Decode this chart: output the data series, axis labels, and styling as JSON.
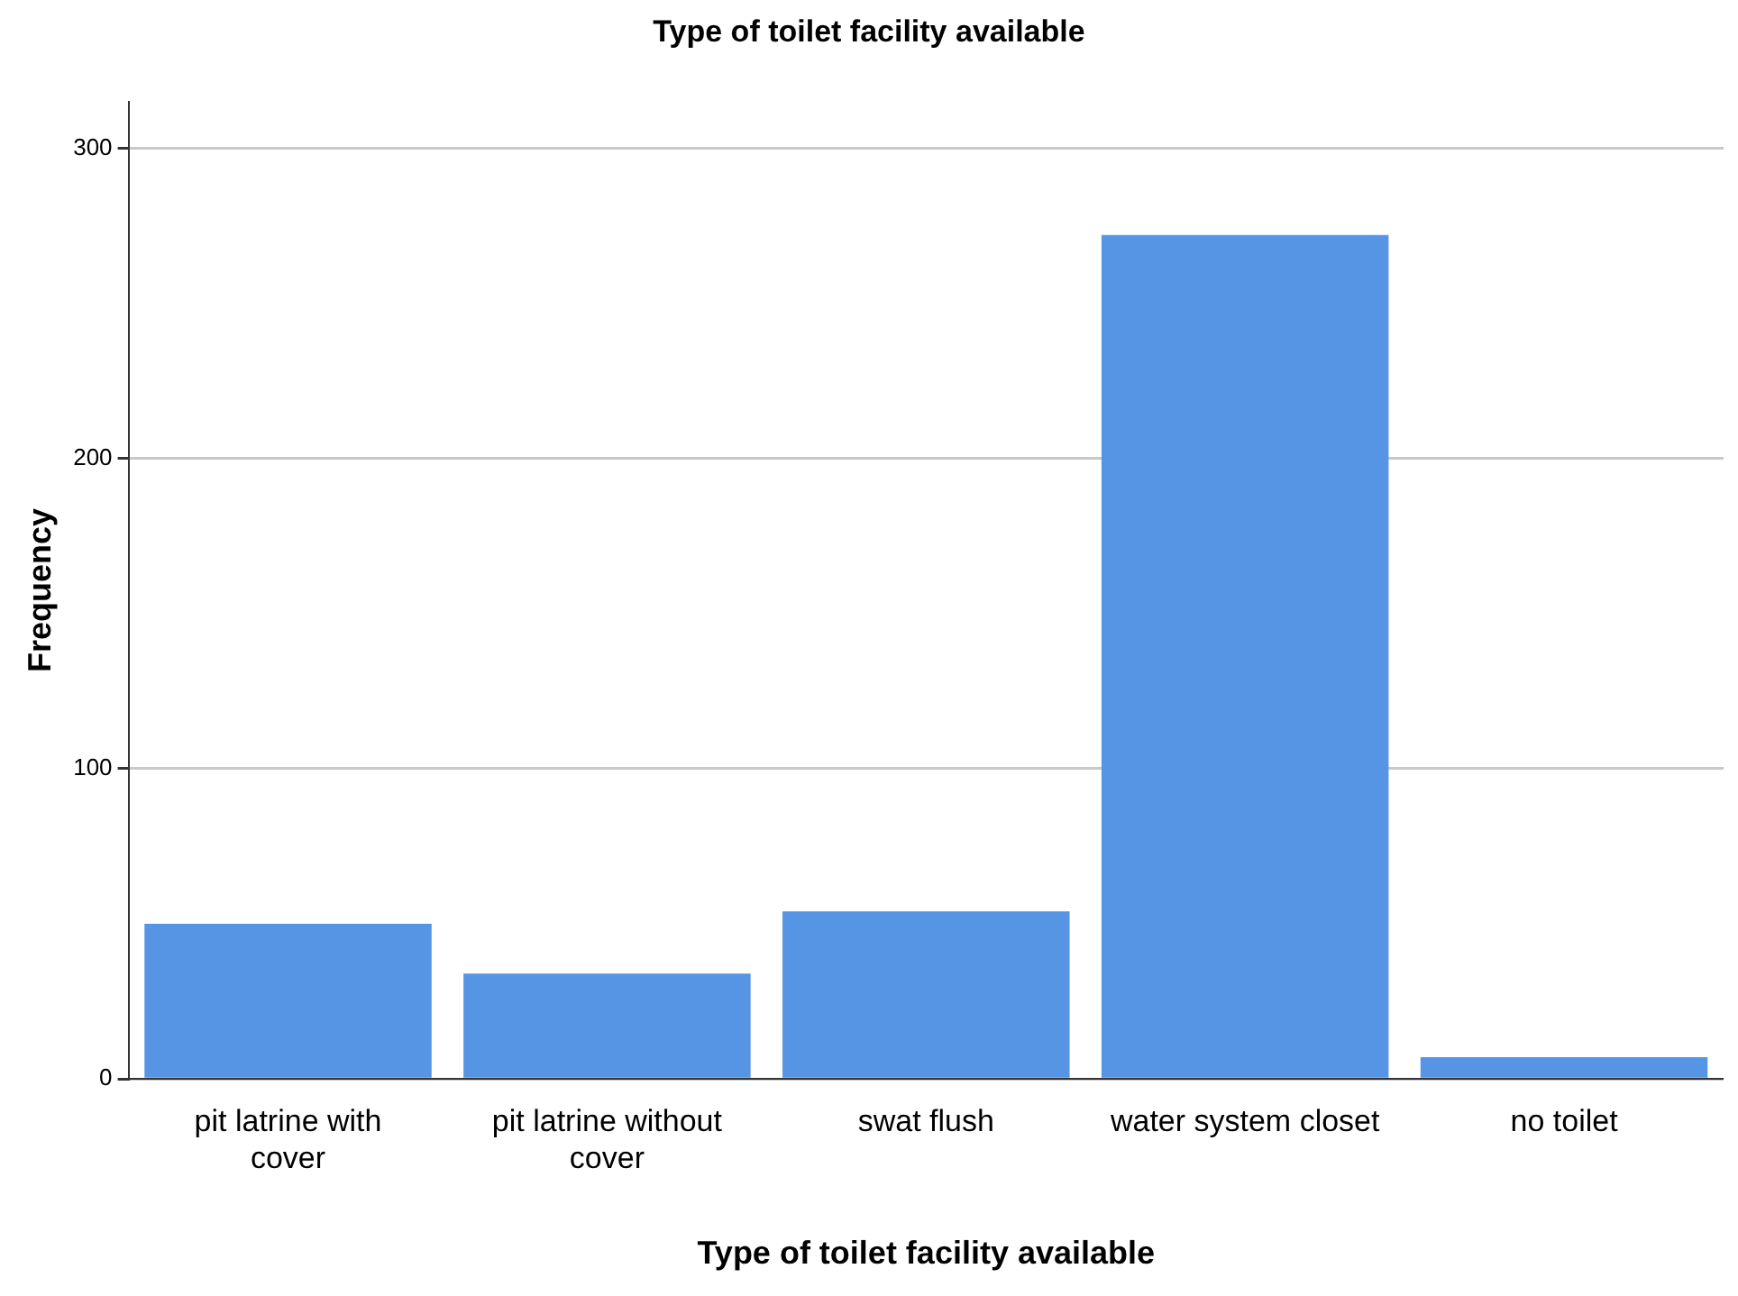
{
  "chart_data": {
    "type": "bar",
    "title": "Type of toilet facility available",
    "xlabel": "Type of toilet facility available",
    "ylabel": "Frequency",
    "categories": [
      "pit latrine with cover",
      "pit latrine without cover",
      "swat flush",
      "water system closet",
      "no toilet"
    ],
    "values": [
      50,
      34,
      54,
      272,
      7
    ],
    "color": "#5595e3",
    "ylim": [
      0,
      315
    ],
    "yticks": [
      0,
      100,
      200,
      300
    ],
    "grid": "y",
    "legend": false
  }
}
